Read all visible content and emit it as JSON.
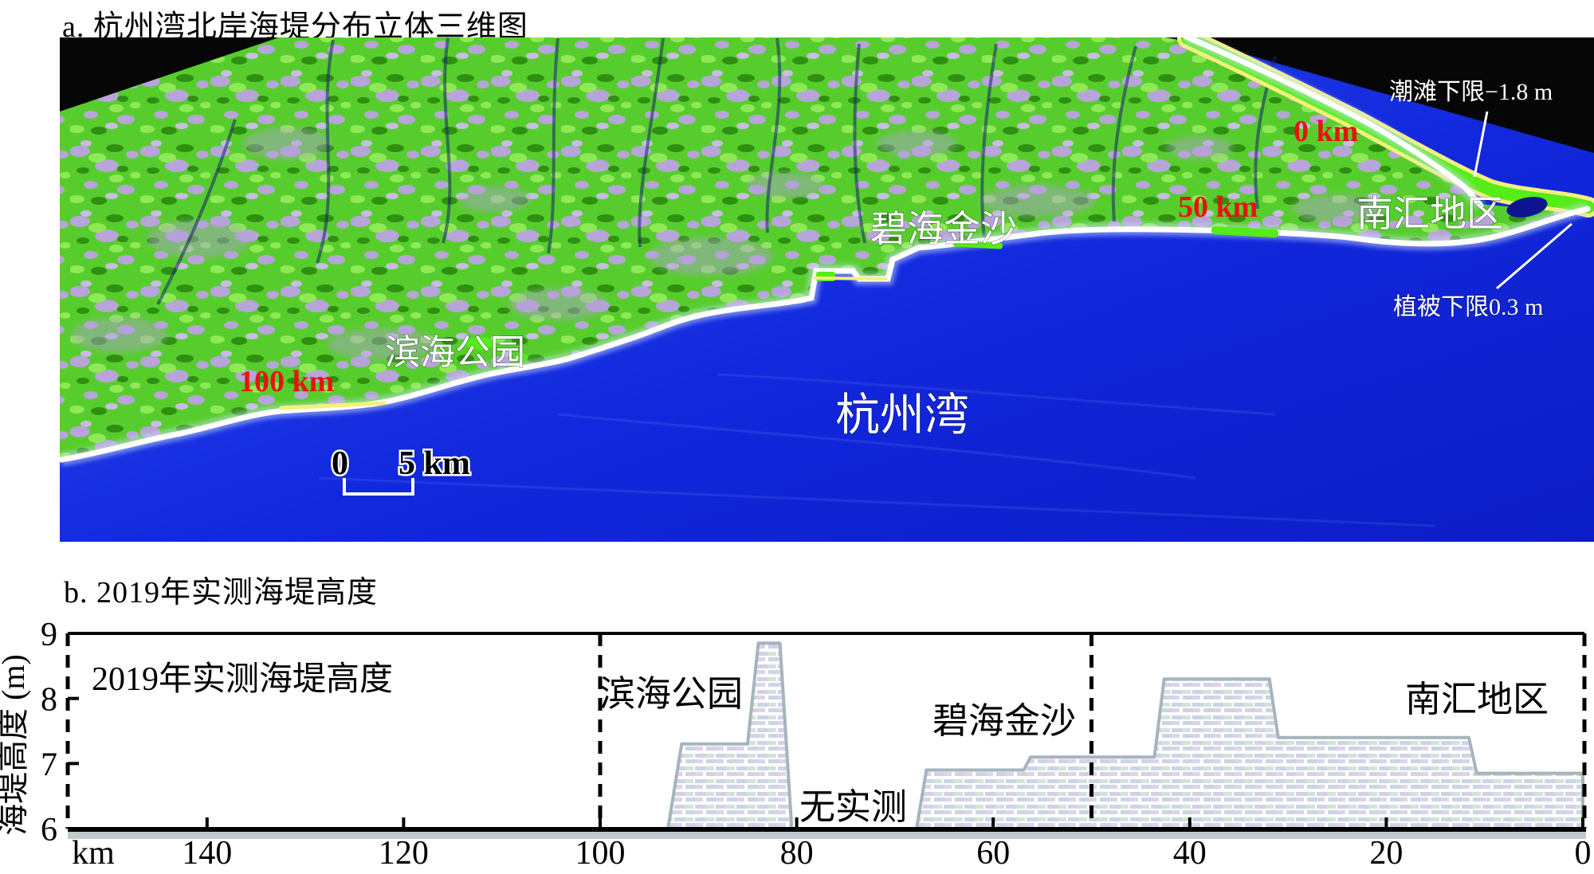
{
  "panel_a": {
    "title": "a. 杭州湾北岸海堤分布立体三维图",
    "labels": {
      "tidal_flat": "潮滩下限−1.8 m",
      "zero_km": "0 km",
      "fifty_km": "50 km",
      "hundred_km": "100 km",
      "nanhui": "南汇地区",
      "bihaijinsha": "碧海金沙",
      "binhai_park": "滨海公园",
      "hangzhou_bay": "杭州湾",
      "veg_limit": "植被下限0.3 m",
      "scale_zero": "0",
      "scale_five": "5 km"
    },
    "colors": {
      "sea": "#1a35e8",
      "land": "#57cd2d",
      "tidal_flat_green": "#55ec17",
      "tidal_flat_edge_yellow": "#f4f07c",
      "km_marker_red": "#e81212",
      "seawall_white": "#ffffff"
    }
  },
  "panel_b": {
    "title": "b. 2019年实测海堤高度",
    "y_axis_label": "海堤高度 (m)",
    "in_plot_title": "2019年实测海堤高度",
    "label_binhai": "滨海公园",
    "label_no_data": "无实测",
    "label_bihai": "碧海金沙",
    "label_nanhui": "南汇地区"
  },
  "chart_data": {
    "type": "area",
    "title": "2019年实测海堤高度",
    "xlabel": "km",
    "ylabel": "海堤高度 (m)",
    "xlim": [
      154,
      0
    ],
    "x_reversed": true,
    "ylim": [
      6,
      9
    ],
    "x_ticks": [
      140,
      120,
      100,
      80,
      60,
      40,
      20,
      0
    ],
    "y_ticks": [
      9,
      8,
      7,
      6
    ],
    "grid": false,
    "boundaries_km": [
      100,
      50
    ],
    "sections": [
      {
        "label": "滨海公园",
        "km_range": [
          100,
          80.5
        ]
      },
      {
        "label": "无实测",
        "km_range": [
          80.5,
          68
        ]
      },
      {
        "label": "碧海金沙",
        "km_range": [
          68,
          50
        ]
      },
      {
        "label": "南汇地区",
        "km_range": [
          50,
          0
        ]
      }
    ],
    "walls": [
      {
        "name": "binhai-park-wall",
        "points_km_m": [
          [
            93.1,
            6.0
          ],
          [
            91.7,
            7.3
          ],
          [
            85.0,
            7.3
          ],
          [
            83.9,
            8.85
          ],
          [
            81.7,
            8.85
          ],
          [
            80.5,
            6.0
          ]
        ]
      },
      {
        "name": "bihai-nanhui-wall",
        "points_km_m": [
          [
            67.8,
            6.0
          ],
          [
            66.8,
            6.9
          ],
          [
            56.9,
            6.9
          ],
          [
            56.2,
            7.1
          ],
          [
            43.6,
            7.1
          ],
          [
            42.6,
            8.3
          ],
          [
            31.9,
            8.3
          ],
          [
            31.0,
            7.4
          ],
          [
            11.6,
            7.4
          ],
          [
            10.8,
            6.85
          ],
          [
            0,
            6.85
          ],
          [
            0,
            6.0
          ]
        ]
      }
    ]
  }
}
